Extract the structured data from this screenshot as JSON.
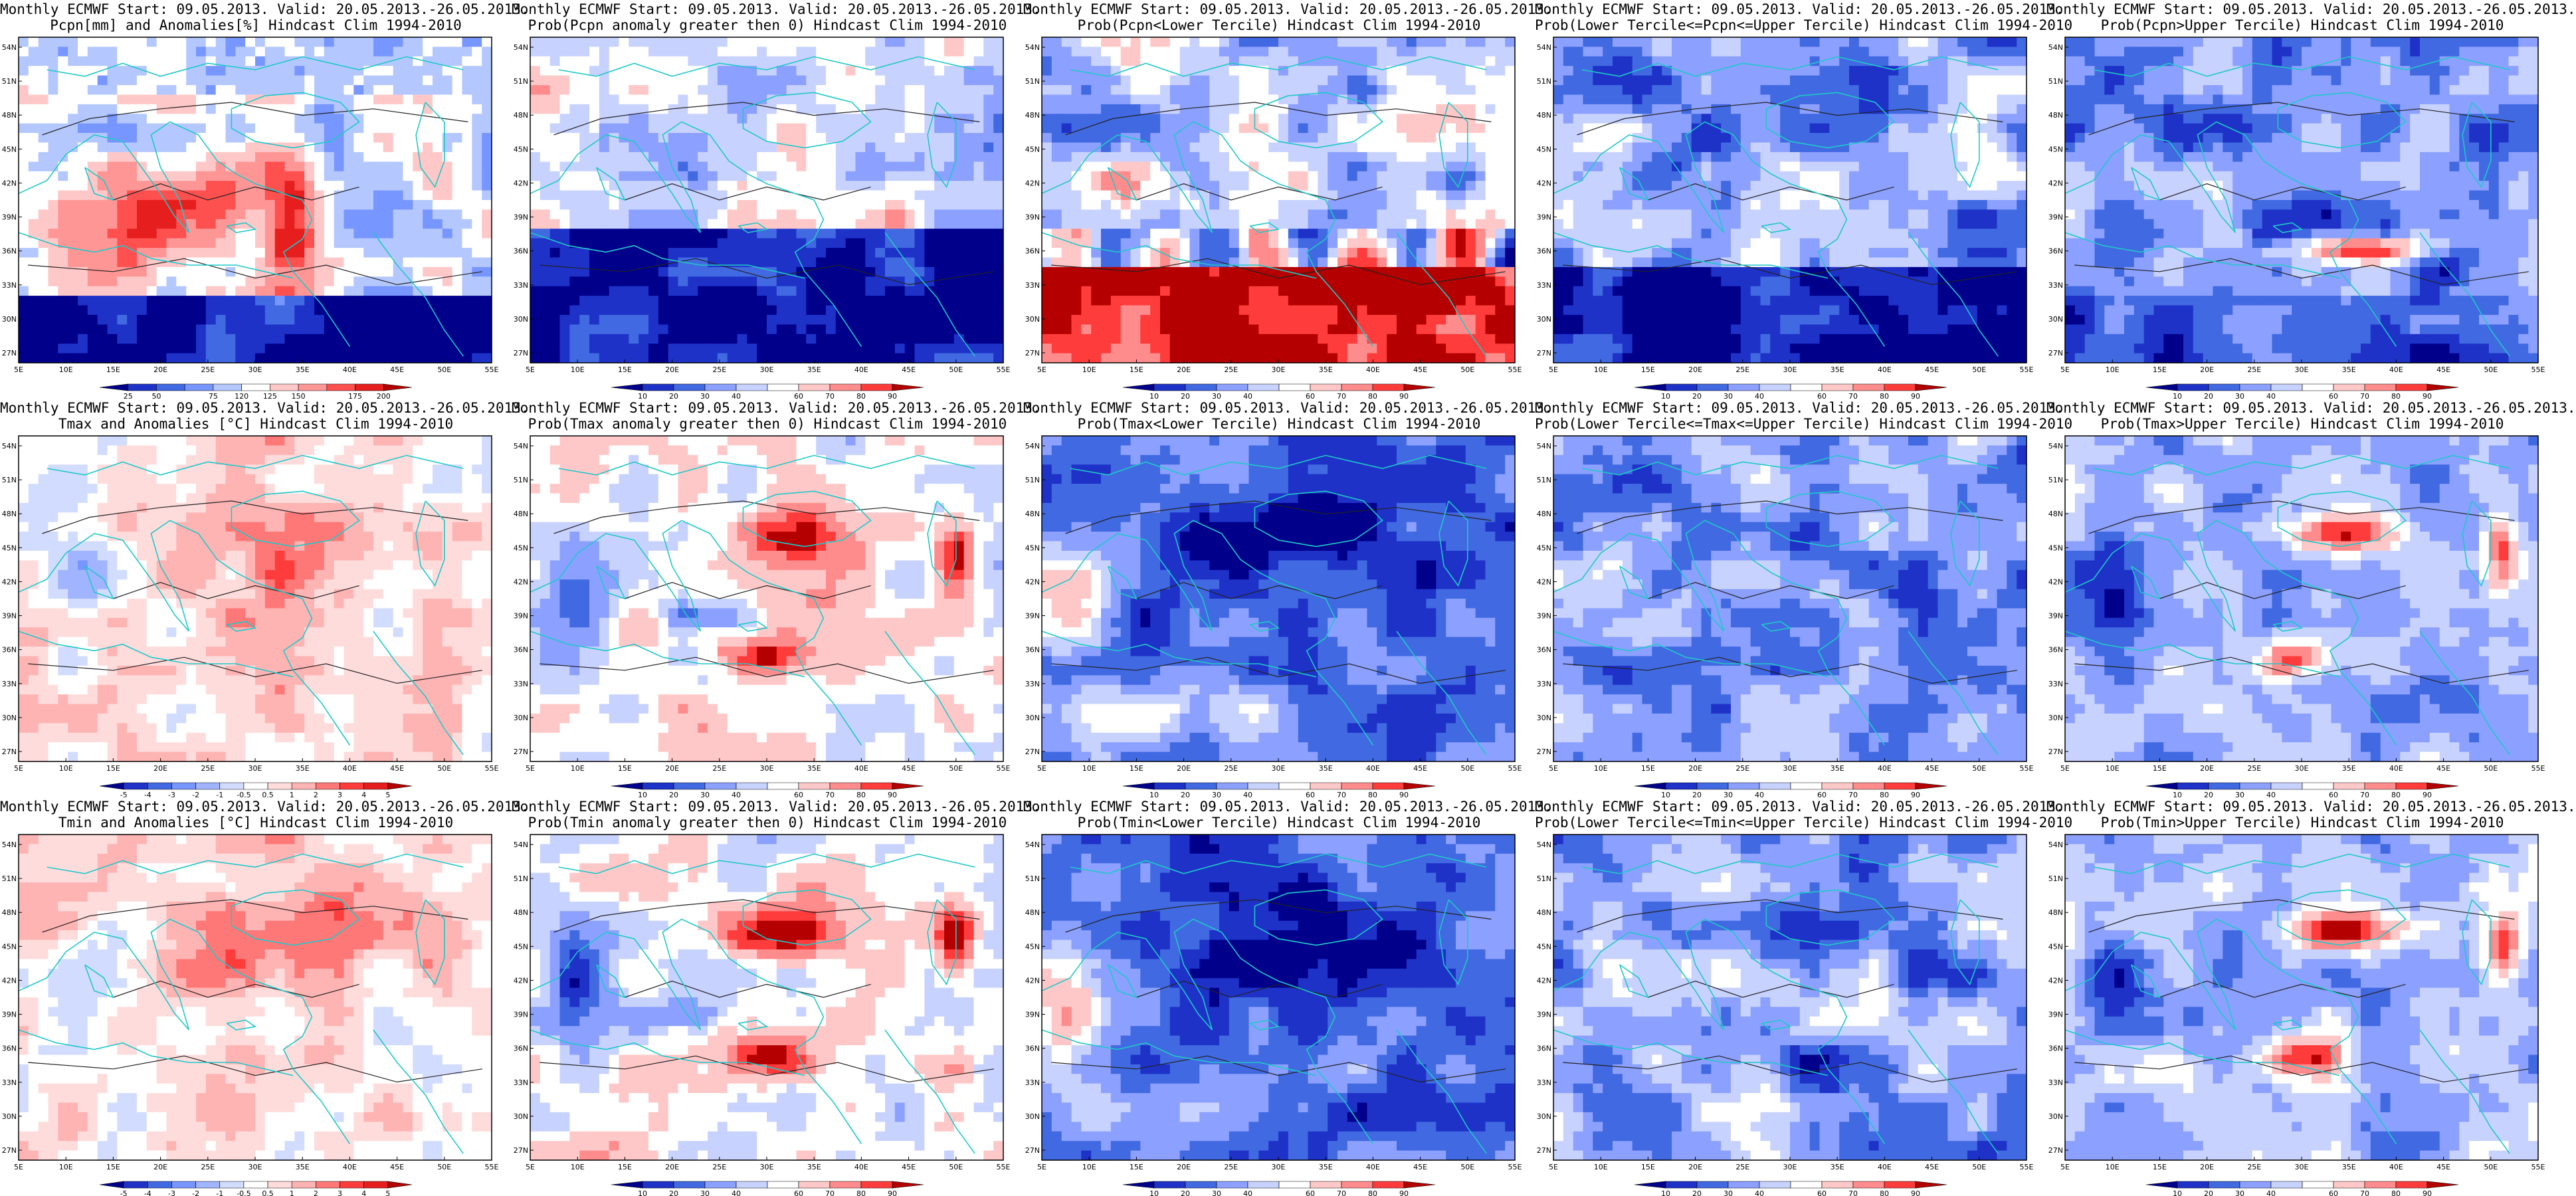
{
  "figure": {
    "titles": {
      "prefix": "Monthly ECMWF Start: 09.05.2013. Valid: 20.05.2013.-26.05.2013."
    },
    "axes": {
      "lat_labels": [
        "27N",
        "30N",
        "33N",
        "36N",
        "39N",
        "42N",
        "45N",
        "48N",
        "51N",
        "54N"
      ],
      "lon_labels": [
        "5E",
        "10E",
        "15E",
        "20E",
        "25E",
        "30E",
        "35E",
        "40E",
        "45E",
        "50E",
        "55E"
      ]
    },
    "colorbars": {
      "precip_anom": {
        "labels": [
          "25",
          "50",
          "75",
          "120",
          "125",
          "150",
          "175",
          "200"
        ],
        "colors": [
          "#00008b",
          "#1e32c8",
          "#4169e1",
          "#7896ff",
          "#b4c8ff",
          "#ffffff",
          "#ffc8c8",
          "#ff9696",
          "#ff5050",
          "#e61e1e",
          "#b40000"
        ]
      },
      "prob": {
        "labels": [
          "10",
          "20",
          "30",
          "40",
          "60",
          "70",
          "80",
          "90"
        ],
        "colors": [
          "#00008b",
          "#1e32c8",
          "#4169e1",
          "#8ca0ff",
          "#c8d2ff",
          "#ffffff",
          "#ffc8c8",
          "#ff8c8c",
          "#ff3c3c",
          "#b40000"
        ]
      },
      "temp_anom": {
        "labels": [
          "-5",
          "-4",
          "-3",
          "-2",
          "-1",
          "-0.5",
          "0.5",
          "1",
          "2",
          "3",
          "4",
          "5"
        ],
        "colors": [
          "#00008b",
          "#1e32c8",
          "#4169e1",
          "#7896ff",
          "#a0b4ff",
          "#d2dcff",
          "#ffffff",
          "#ffdcdc",
          "#ffb4b4",
          "#ff7878",
          "#ff3c3c",
          "#e61e1e",
          "#b40000"
        ]
      }
    },
    "panels": [
      {
        "id": "p1",
        "line1": "Monthly ECMWF Start: 09.05.2013. Valid: 20.05.2013.-26.05.2013.",
        "line2": "Pcpn[mm] and Anomalies[%] Hindcast Clim 1994-2010",
        "colorbar": "precip_anom",
        "pattern": "precip_anom"
      },
      {
        "id": "p2",
        "line1": "Monthly ECMWF Start: 09.05.2013. Valid: 20.05.2013.-26.05.2013.",
        "line2": "Prob(Pcpn anomaly greater then 0) Hindcast Clim 1994-2010",
        "colorbar": "prob",
        "pattern": "precip_pos"
      },
      {
        "id": "p3",
        "line1": "Monthly ECMWF Start: 09.05.2013. Valid: 20.05.2013.-26.05.2013.",
        "line2": "Prob(Pcpn<Lower Tercile) Hindcast Clim 1994-2010",
        "colorbar": "prob",
        "pattern": "precip_lower"
      },
      {
        "id": "p4",
        "line1": "Monthly ECMWF Start: 09.05.2013. Valid: 20.05.2013.-26.05.2013.",
        "line2": "Prob(Lower Tercile<=Pcpn<=Upper Tercile) Hindcast Clim 1994-2010",
        "colorbar": "prob",
        "pattern": "precip_mid"
      },
      {
        "id": "p5",
        "line1": "Monthly ECMWF Start: 09.05.2013. Valid: 20.05.2013.-26.05.2013.",
        "line2": "Prob(Pcpn>Upper Tercile) Hindcast Clim 1994-2010",
        "colorbar": "prob",
        "pattern": "precip_upper"
      },
      {
        "id": "p6",
        "line1": "Monthly ECMWF Start: 09.05.2013. Valid: 20.05.2013.-26.05.2013.",
        "line2": "Tmax and Anomalies [°C] Hindcast Clim 1994-2010",
        "colorbar": "temp_anom",
        "pattern": "temp_anom"
      },
      {
        "id": "p7",
        "line1": "Monthly ECMWF Start: 09.05.2013. Valid: 20.05.2013.-26.05.2013.",
        "line2": "Prob(Tmax anomaly greater then 0) Hindcast Clim 1994-2010",
        "colorbar": "prob",
        "pattern": "temp_pos"
      },
      {
        "id": "p8",
        "line1": "Monthly ECMWF Start: 09.05.2013. Valid: 20.05.2013.-26.05.2013.",
        "line2": "Prob(Tmax<Lower Tercile) Hindcast Clim 1994-2010",
        "colorbar": "prob",
        "pattern": "temp_lower"
      },
      {
        "id": "p9",
        "line1": "Monthly ECMWF Start: 09.05.2013. Valid: 20.05.2013.-26.05.2013.",
        "line2": "Prob(Lower Tercile<=Tmax<=Upper Tercile) Hindcast Clim 1994-2010",
        "colorbar": "prob",
        "pattern": "temp_mid"
      },
      {
        "id": "p10",
        "line1": "Monthly ECMWF Start: 09.05.2013. Valid: 20.05.2013.-26.05.2013.",
        "line2": "Prob(Tmax>Upper Tercile) Hindcast Clim 1994-2010",
        "colorbar": "prob",
        "pattern": "temp_upper"
      },
      {
        "id": "p11",
        "line1": "Monthly ECMWF Start: 09.05.2013. Valid: 20.05.2013.-26.05.2013.",
        "line2": "Tmin and Anomalies [°C] Hindcast Clim 1994-2010",
        "colorbar": "temp_anom",
        "pattern": "temp_anom"
      },
      {
        "id": "p12",
        "line1": "Monthly ECMWF Start: 09.05.2013. Valid: 20.05.2013.-26.05.2013.",
        "line2": "Prob(Tmin anomaly greater then 0) Hindcast Clim 1994-2010",
        "colorbar": "prob",
        "pattern": "temp_pos"
      },
      {
        "id": "p13",
        "line1": "Monthly ECMWF Start: 09.05.2013. Valid: 20.05.2013.-26.05.2013.",
        "line2": "Prob(Tmin<Lower Tercile) Hindcast Clim 1994-2010",
        "colorbar": "prob",
        "pattern": "temp_lower"
      },
      {
        "id": "p14",
        "line1": "Monthly ECMWF Start: 09.05.2013. Valid: 20.05.2013.-26.05.2013.",
        "line2": "Prob(Lower Tercile<=Tmin<=Upper Tercile) Hindcast Clim 1994-2010",
        "colorbar": "prob",
        "pattern": "temp_mid"
      },
      {
        "id": "p15",
        "line1": "Monthly ECMWF Start: 09.05.2013. Valid: 20.05.2013.-26.05.2013.",
        "line2": "Prob(Tmin>Upper Tercile) Hindcast Clim 1994-2010",
        "colorbar": "prob",
        "pattern": "temp_upper"
      }
    ]
  }
}
